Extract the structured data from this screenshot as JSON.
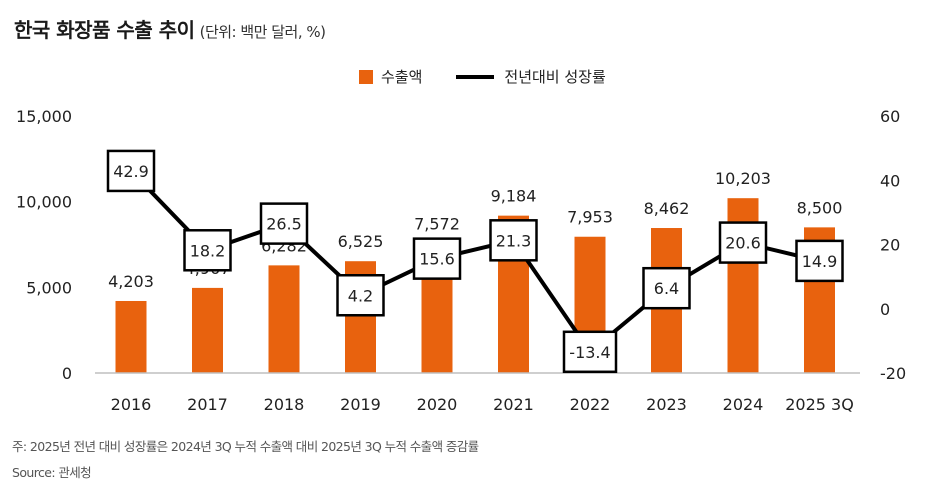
{
  "title": {
    "main": "한국 화장품 수출 추이",
    "unit": "(단위: 백만 달러, %)"
  },
  "legend": [
    {
      "label": "수출액",
      "type": "bar",
      "color": "#E8620E"
    },
    {
      "label": "전년대비 성장률",
      "type": "line",
      "color": "#000000"
    }
  ],
  "footnote": "주: 2025년 전년 대비 성장률은 2024년 3Q 누적 수출액 대비 2025년 3Q 누적 수출액 증감률",
  "source": "Source: 관세청",
  "chart_data": {
    "type": "bar",
    "title": "한국 화장품 수출 추이",
    "subtitle": "(단위: 백만 달러, %)",
    "categories": [
      "2016",
      "2017",
      "2018",
      "2019",
      "2020",
      "2021",
      "2022",
      "2023",
      "2024",
      "2025 3Q"
    ],
    "series": [
      {
        "name": "수출액",
        "type": "bar",
        "axis": "left",
        "color": "#E8620E",
        "values": [
          4203,
          4967,
          6282,
          6525,
          7572,
          9184,
          7953,
          8462,
          10203,
          8500
        ],
        "labels": [
          "4,203",
          "4,967",
          "6,282",
          "6,525",
          "7,572",
          "9,184",
          "7,953",
          "8,462",
          "10,203",
          "8,500"
        ]
      },
      {
        "name": "전년대비 성장률",
        "type": "line",
        "axis": "right",
        "color": "#000000",
        "values": [
          42.9,
          18.2,
          26.5,
          4.2,
          15.6,
          21.3,
          -13.4,
          6.4,
          20.6,
          14.9
        ],
        "labels": [
          "42.9",
          "18.2",
          "26.5",
          "4.2",
          "15.6",
          "21.3",
          "-13.4",
          "6.4",
          "20.6",
          "14.9"
        ]
      }
    ],
    "y_left": {
      "ylim": [
        0,
        15000
      ],
      "ticks": [
        0,
        5000,
        10000,
        15000
      ],
      "tick_labels": [
        "0",
        "5,000",
        "10,000",
        "15,000"
      ]
    },
    "y_right": {
      "ylim": [
        -20,
        60
      ],
      "ticks": [
        -20,
        0,
        20,
        40,
        60
      ],
      "tick_labels": [
        "-20",
        "0",
        "20",
        "40",
        "60"
      ]
    },
    "xlabel": "",
    "ylabel": "",
    "grid": false,
    "legend_position": "top-center"
  }
}
